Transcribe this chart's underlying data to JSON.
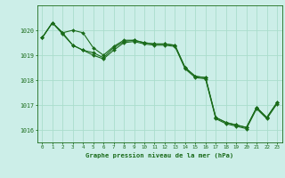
{
  "title": "Graphe pression niveau de la mer (hPa)",
  "background_color": "#cceee8",
  "grid_color": "#aaddcc",
  "line_color": "#1a6b1a",
  "x_labels": [
    "0",
    "1",
    "2",
    "3",
    "4",
    "5",
    "6",
    "7",
    "8",
    "9",
    "10",
    "11",
    "12",
    "13",
    "14",
    "15",
    "16",
    "17",
    "18",
    "19",
    "20",
    "21",
    "22",
    "23"
  ],
  "ylim": [
    1015.5,
    1021.0
  ],
  "yticks": [
    1016,
    1017,
    1018,
    1019,
    1020
  ],
  "series1_x": [
    0,
    1,
    2,
    3,
    4,
    5,
    6,
    7,
    8,
    9,
    10,
    11,
    12,
    13,
    14,
    15,
    16,
    17,
    18,
    19,
    20,
    21,
    22,
    23
  ],
  "series1_y": [
    1019.7,
    1020.3,
    1019.9,
    1020.0,
    1019.9,
    1019.3,
    1019.0,
    1019.35,
    1019.6,
    1019.6,
    1019.5,
    1019.45,
    1019.45,
    1019.4,
    1018.5,
    1018.15,
    1018.1,
    1016.5,
    1016.3,
    1016.2,
    1016.1,
    1016.9,
    1016.5,
    1017.1
  ],
  "series2_x": [
    0,
    1,
    2,
    3,
    4,
    5,
    6,
    7,
    8,
    9,
    10,
    11,
    12,
    13,
    14,
    15,
    16,
    17,
    18,
    19,
    20,
    21,
    22,
    23
  ],
  "series2_y": [
    1019.7,
    1020.3,
    1019.9,
    1019.4,
    1019.2,
    1019.1,
    1018.9,
    1019.3,
    1019.55,
    1019.6,
    1019.5,
    1019.45,
    1019.45,
    1019.4,
    1018.5,
    1018.15,
    1018.1,
    1016.5,
    1016.3,
    1016.2,
    1016.1,
    1016.9,
    1016.5,
    1017.1
  ],
  "series3_x": [
    0,
    1,
    2,
    3,
    4,
    5,
    6,
    7,
    8,
    9,
    10,
    11,
    12,
    13,
    14,
    15,
    16,
    17,
    18,
    19,
    20,
    21,
    22,
    23
  ],
  "series3_y": [
    1019.7,
    1020.3,
    1019.85,
    1019.4,
    1019.2,
    1019.0,
    1018.85,
    1019.2,
    1019.5,
    1019.55,
    1019.45,
    1019.4,
    1019.4,
    1019.35,
    1018.45,
    1018.1,
    1018.05,
    1016.45,
    1016.25,
    1016.15,
    1016.05,
    1016.85,
    1016.45,
    1017.05
  ]
}
